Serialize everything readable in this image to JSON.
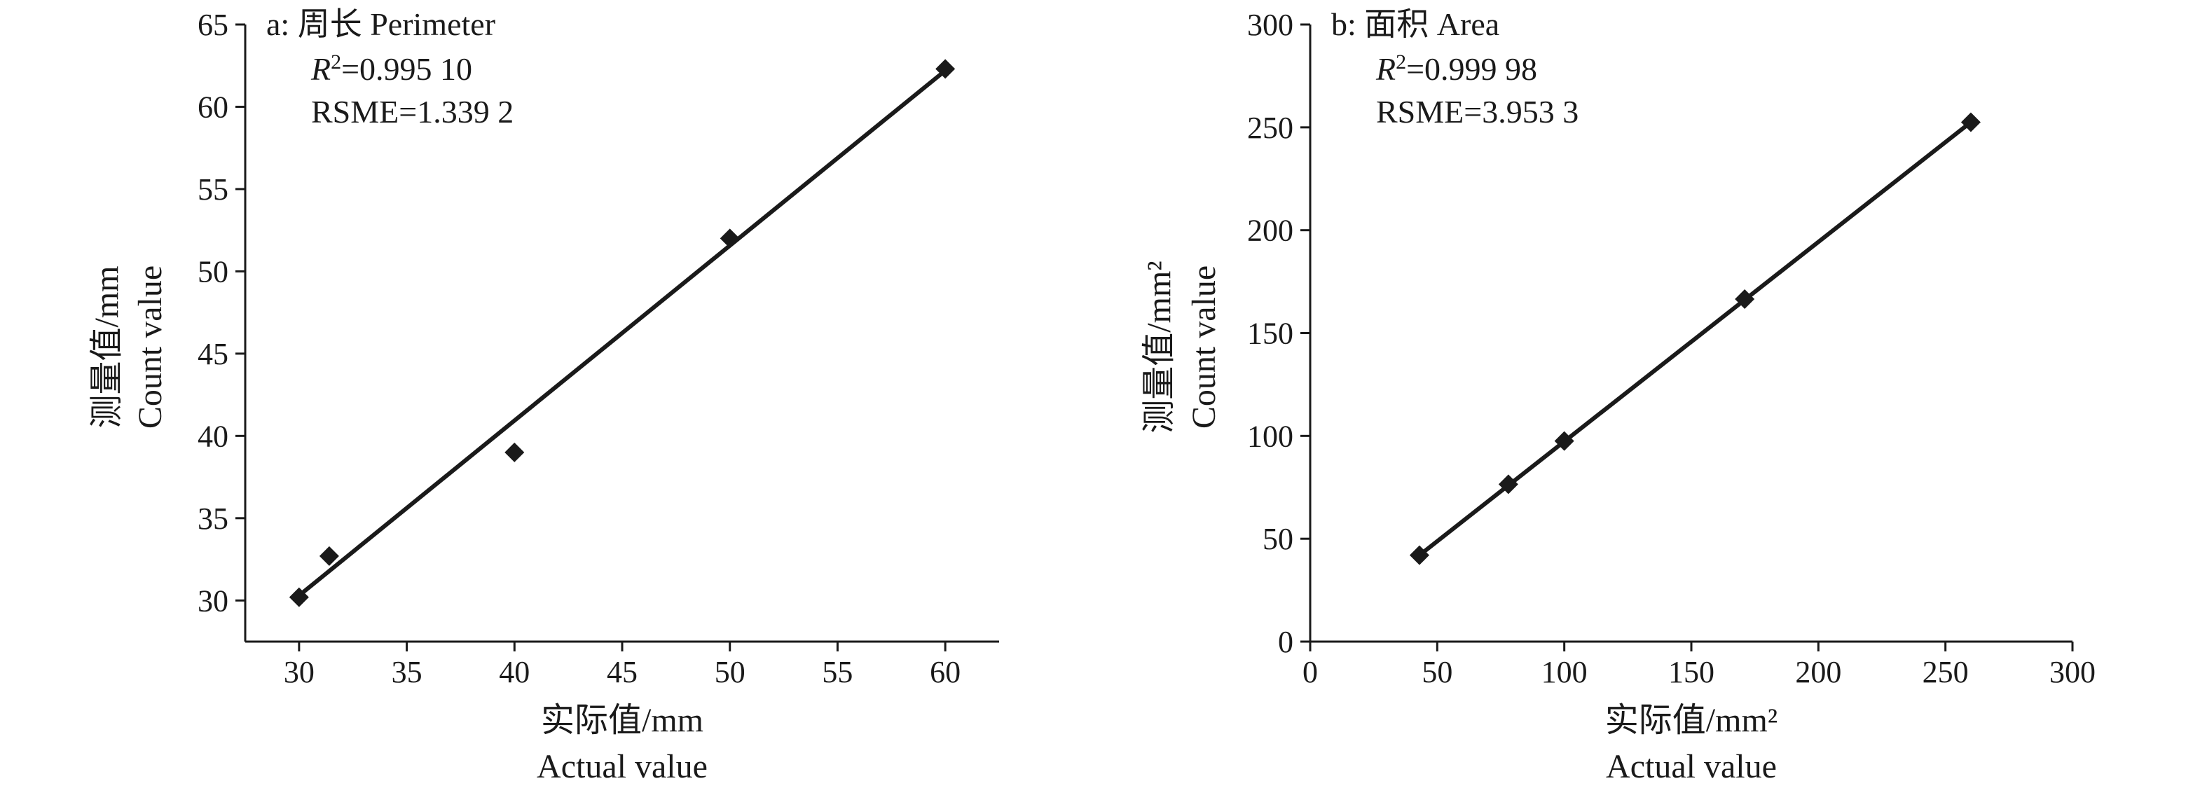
{
  "chart_data": [
    {
      "type": "scatter",
      "title": "a: 周长 Perimeter",
      "xlabel": [
        "实际值/mm",
        "Actual value"
      ],
      "ylabel": [
        "测量值/mm",
        "Count value"
      ],
      "xlim": [
        27.5,
        62.5
      ],
      "ylim": [
        27.5,
        65
      ],
      "xticks": [
        "30",
        "35",
        "40",
        "45",
        "50",
        "55",
        "60"
      ],
      "yticks": [
        "30",
        "35",
        "40",
        "45",
        "50",
        "55",
        "60",
        "65"
      ],
      "annotations": {
        "r2_symbol": "R",
        "r2_exp": "2",
        "r2_value": "=0.995 10",
        "rmse": "RSME=1.339 2"
      },
      "series": [
        {
          "points": [
            [
              30,
              30.2
            ],
            [
              31.4,
              32.7
            ],
            [
              40,
              39.0
            ],
            [
              50,
              52.0
            ],
            [
              60,
              62.3
            ]
          ]
        }
      ],
      "fit_line": [
        [
          30,
          30.3
        ],
        [
          60,
          62.2
        ]
      ],
      "grid": false,
      "marker": "diamond",
      "color": "#1a1a1a"
    },
    {
      "type": "scatter",
      "title": "b: 面积 Area",
      "xlabel": [
        "实际值/mm²",
        "Actual value"
      ],
      "ylabel": [
        "测量值/mm²",
        "Count value"
      ],
      "xlim": [
        0,
        300
      ],
      "ylim": [
        0,
        300
      ],
      "xticks": [
        "0",
        "50",
        "100",
        "150",
        "200",
        "250",
        "300"
      ],
      "yticks": [
        "0",
        "50",
        "100",
        "150",
        "200",
        "250",
        "300"
      ],
      "annotations": {
        "r2_symbol": "R",
        "r2_exp": "2",
        "r2_value": "=0.999 98",
        "rmse": "RSME=3.953 3"
      },
      "series": [
        {
          "points": [
            [
              43,
              42
            ],
            [
              78,
              76.5
            ],
            [
              100,
              97.5
            ],
            [
              171,
              166.5
            ],
            [
              260,
              252.5
            ]
          ]
        }
      ],
      "fit_line": [
        [
          43,
          42
        ],
        [
          260,
          252.5
        ]
      ],
      "grid": false,
      "marker": "diamond",
      "color": "#1a1a1a"
    }
  ]
}
